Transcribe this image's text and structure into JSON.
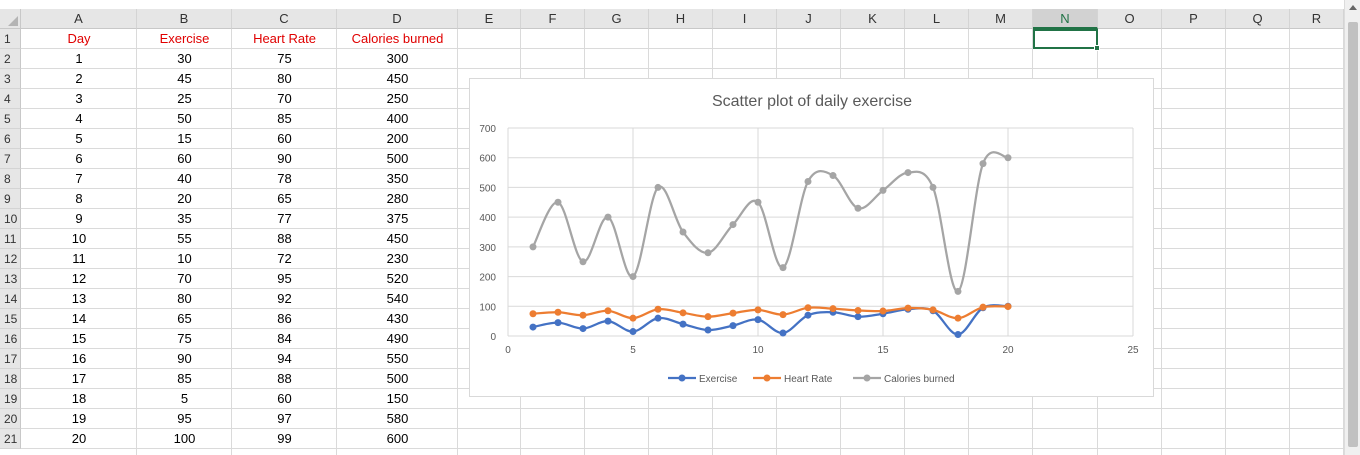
{
  "spreadsheet": {
    "columns": [
      "A",
      "B",
      "C",
      "D",
      "E",
      "F",
      "G",
      "H",
      "I",
      "J",
      "K",
      "L",
      "M",
      "N",
      "O",
      "P",
      "Q",
      "R"
    ],
    "selected_column": "N",
    "rows": [
      "1",
      "2",
      "3",
      "4",
      "5",
      "6",
      "7",
      "8",
      "9",
      "10",
      "11",
      "12",
      "13",
      "14",
      "15",
      "16",
      "17",
      "18",
      "19",
      "20",
      "21"
    ],
    "headers": [
      "Day",
      "Exercise",
      "Heart Rate",
      "Calories burned"
    ],
    "data": [
      [
        "1",
        "30",
        "75",
        "300"
      ],
      [
        "2",
        "45",
        "80",
        "450"
      ],
      [
        "3",
        "25",
        "70",
        "250"
      ],
      [
        "4",
        "50",
        "85",
        "400"
      ],
      [
        "5",
        "15",
        "60",
        "200"
      ],
      [
        "6",
        "60",
        "90",
        "500"
      ],
      [
        "7",
        "40",
        "78",
        "350"
      ],
      [
        "8",
        "20",
        "65",
        "280"
      ],
      [
        "9",
        "35",
        "77",
        "375"
      ],
      [
        "10",
        "55",
        "88",
        "450"
      ],
      [
        "11",
        "10",
        "72",
        "230"
      ],
      [
        "12",
        "70",
        "95",
        "520"
      ],
      [
        "13",
        "80",
        "92",
        "540"
      ],
      [
        "14",
        "65",
        "86",
        "430"
      ],
      [
        "15",
        "75",
        "84",
        "490"
      ],
      [
        "16",
        "90",
        "94",
        "550"
      ],
      [
        "17",
        "85",
        "88",
        "500"
      ],
      [
        "18",
        "5",
        "60",
        "150"
      ],
      [
        "19",
        "95",
        "97",
        "580"
      ],
      [
        "20",
        "100",
        "99",
        "600"
      ]
    ],
    "header_color": "#e00000",
    "selection_color": "#217346"
  },
  "chart_data": {
    "type": "scatter",
    "title": "Scatter plot of daily exercise",
    "xlabel": "",
    "ylabel": "",
    "xlim": [
      0,
      25
    ],
    "ylim": [
      0,
      700
    ],
    "x_ticks": [
      0,
      5,
      10,
      15,
      20,
      25
    ],
    "y_ticks": [
      0,
      100,
      200,
      300,
      400,
      500,
      600,
      700
    ],
    "grid": true,
    "smooth_lines": true,
    "legend_position": "bottom",
    "x": [
      1,
      2,
      3,
      4,
      5,
      6,
      7,
      8,
      9,
      10,
      11,
      12,
      13,
      14,
      15,
      16,
      17,
      18,
      19,
      20
    ],
    "series": [
      {
        "name": "Exercise",
        "color": "#4472c4",
        "values": [
          30,
          45,
          25,
          50,
          15,
          60,
          40,
          20,
          35,
          55,
          10,
          70,
          80,
          65,
          75,
          90,
          85,
          5,
          95,
          100
        ]
      },
      {
        "name": "Heart Rate",
        "color": "#ed7d31",
        "values": [
          75,
          80,
          70,
          85,
          60,
          90,
          78,
          65,
          77,
          88,
          72,
          95,
          92,
          86,
          84,
          94,
          88,
          60,
          97,
          99
        ]
      },
      {
        "name": "Calories burned",
        "color": "#a5a5a5",
        "values": [
          300,
          450,
          250,
          400,
          200,
          500,
          350,
          280,
          375,
          450,
          230,
          520,
          540,
          430,
          490,
          550,
          500,
          150,
          580,
          600
        ]
      }
    ]
  }
}
